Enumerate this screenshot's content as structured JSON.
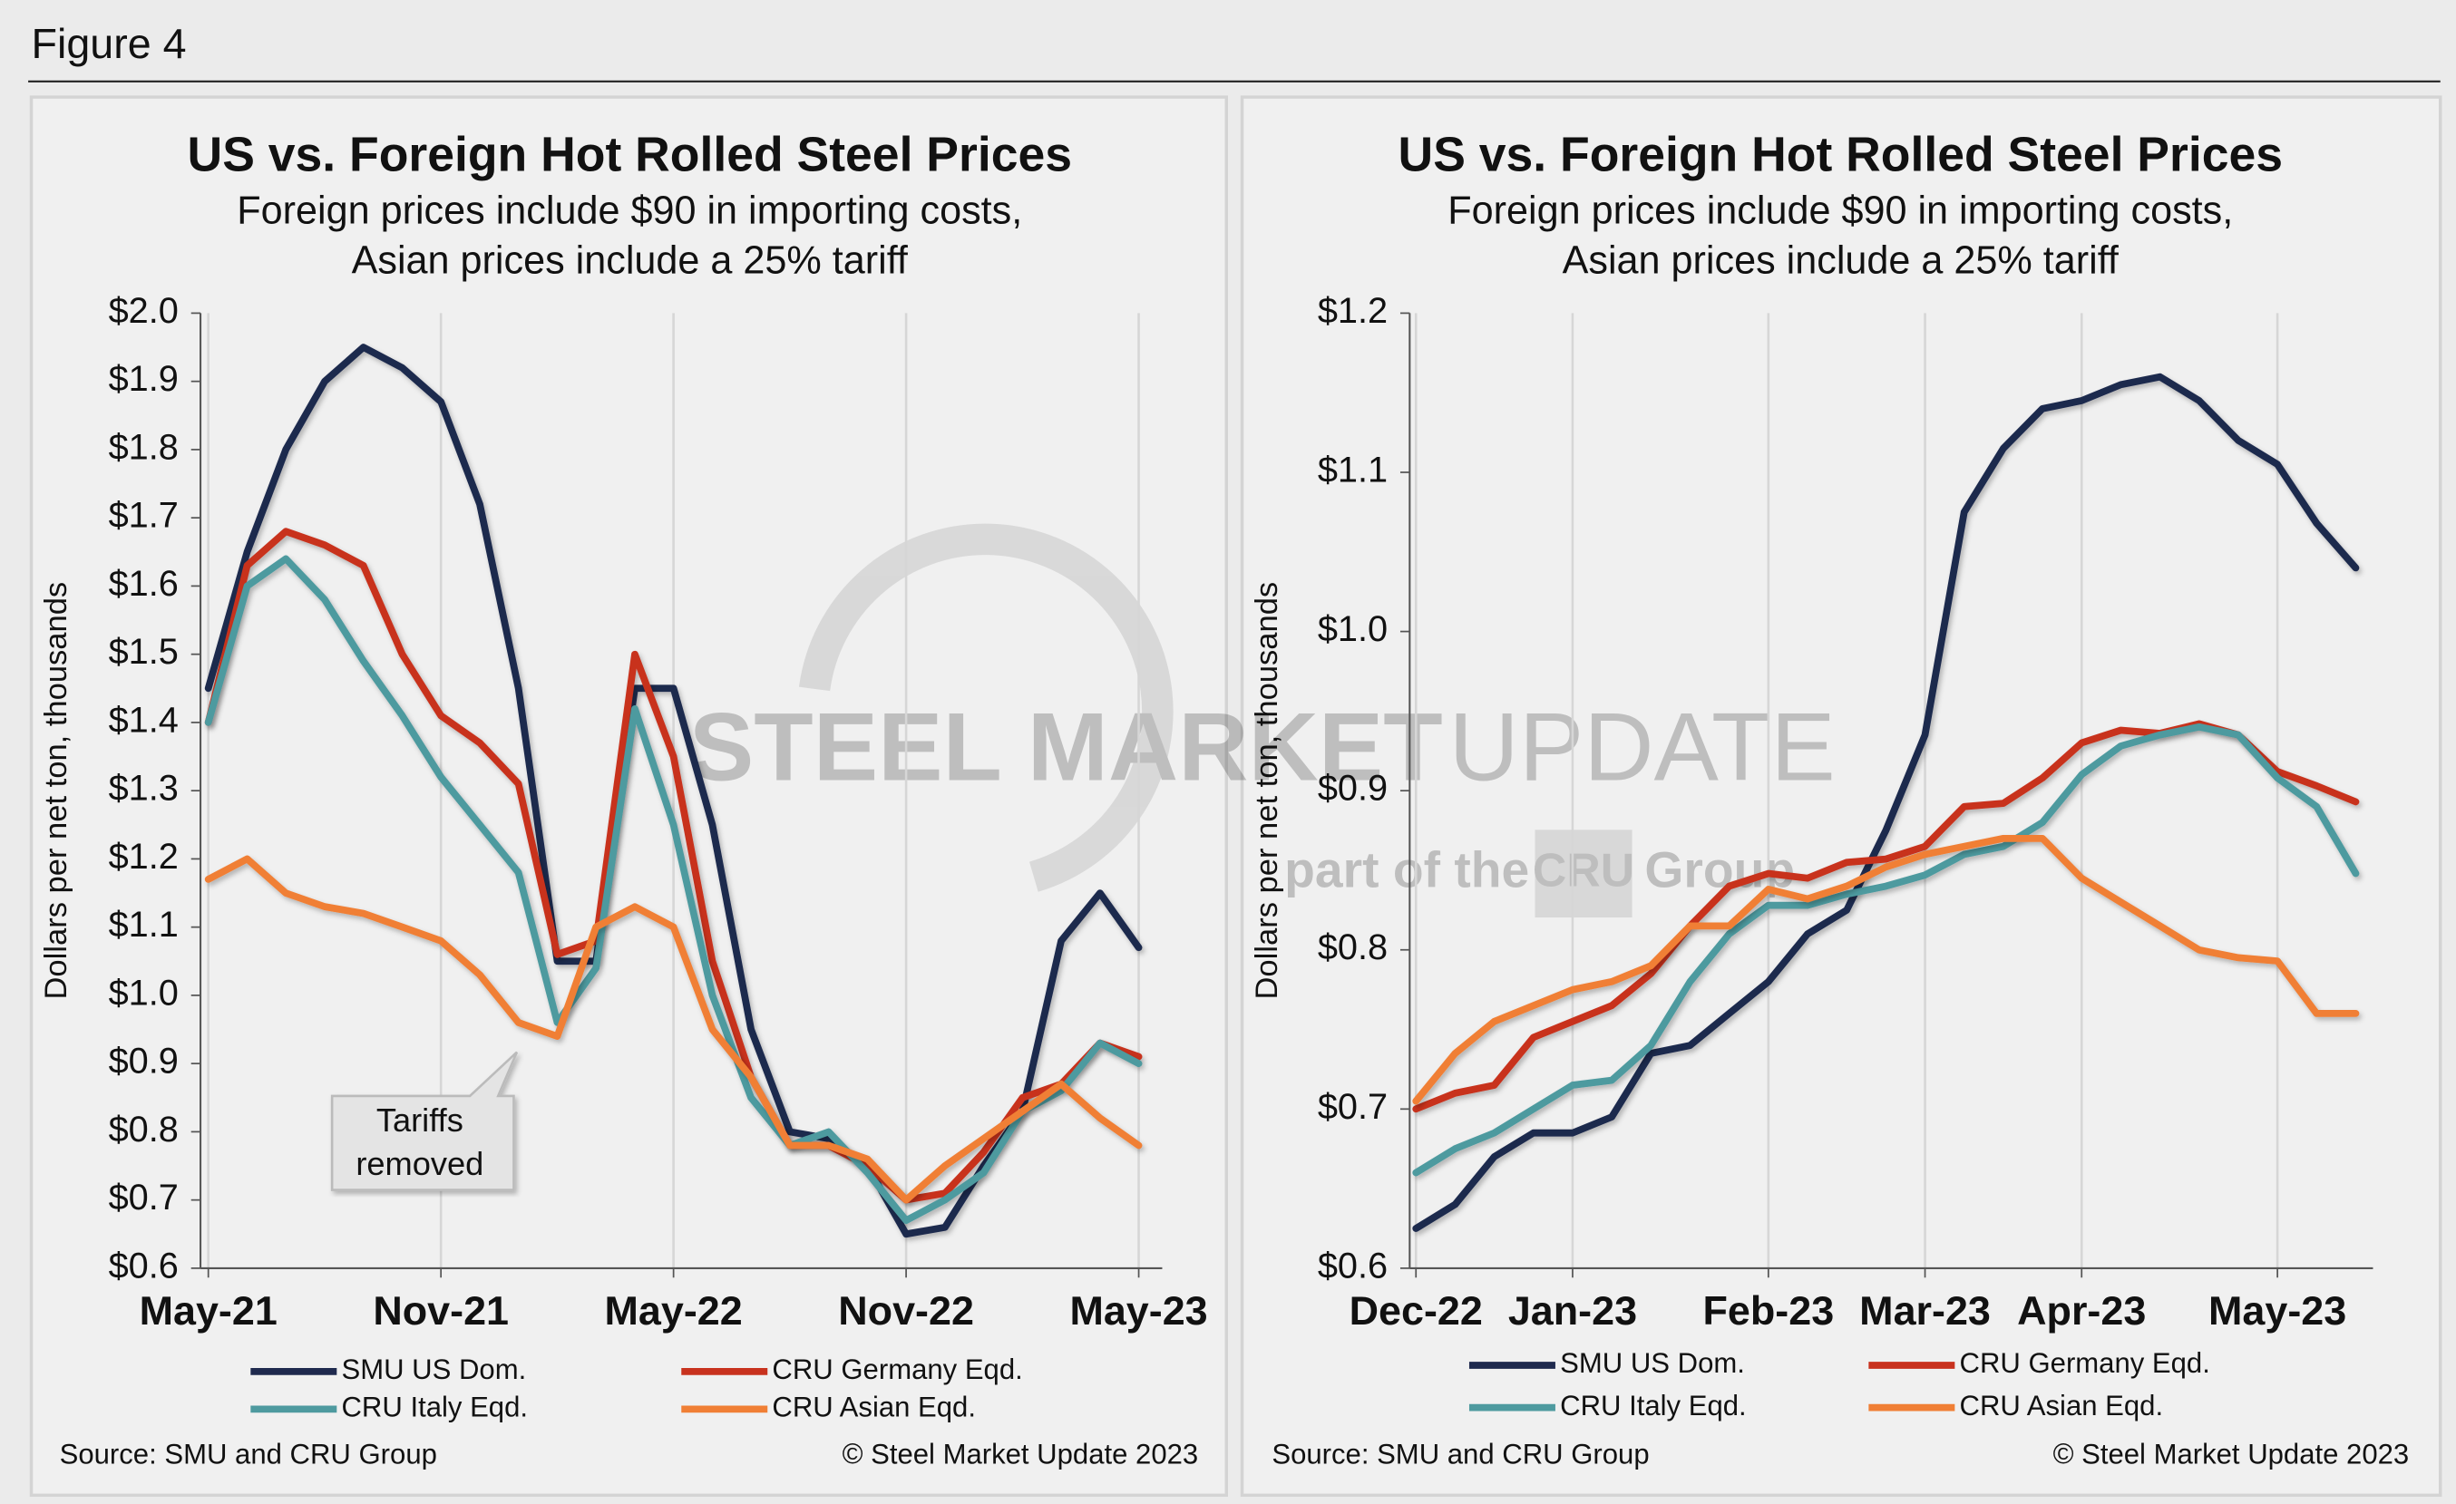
{
  "figure_label": "Figure 4",
  "watermark": {
    "brand": "STEEL MARKET",
    "product": "UPDATE",
    "tagline": "part of the",
    "logo": "CRU",
    "group": "Group"
  },
  "chart_data": [
    {
      "type": "line",
      "title": "US vs. Foreign Hot Rolled Steel Prices",
      "subtitle": [
        "Foreign prices include $90 in importing costs,",
        "Asian prices include a 25% tariff"
      ],
      "y_label": "Dollars per net ton, thousands",
      "categories": [
        "May-21",
        null,
        null,
        null,
        null,
        null,
        "Nov-21",
        null,
        null,
        null,
        null,
        null,
        "May-22",
        null,
        null,
        null,
        null,
        null,
        "Nov-22",
        null,
        null,
        null,
        null,
        null,
        "May-23"
      ],
      "ylim": [
        0.6,
        2.0
      ],
      "yticks": [
        {
          "value": 0.6,
          "label": "$0.6"
        },
        {
          "value": 0.7,
          "label": "$0.7"
        },
        {
          "value": 0.8,
          "label": "$0.8"
        },
        {
          "value": 0.9,
          "label": "$0.9"
        },
        {
          "value": 1.0,
          "label": "$1.0"
        },
        {
          "value": 1.1,
          "label": "$1.1"
        },
        {
          "value": 1.2,
          "label": "$1.2"
        },
        {
          "value": 1.3,
          "label": "$1.3"
        },
        {
          "value": 1.4,
          "label": "$1.4"
        },
        {
          "value": 1.5,
          "label": "$1.5"
        },
        {
          "value": 1.6,
          "label": "$1.6"
        },
        {
          "value": 1.7,
          "label": "$1.7"
        },
        {
          "value": 1.8,
          "label": "$1.8"
        },
        {
          "value": 1.9,
          "label": "$1.9"
        },
        {
          "value": 2.0,
          "label": "$2.0"
        }
      ],
      "grid": true,
      "series": [
        {
          "name": "SMU US Dom.",
          "color": "#1f2a4e",
          "values": [
            1.45,
            1.65,
            1.8,
            1.9,
            1.95,
            1.92,
            1.87,
            1.72,
            1.45,
            1.05,
            1.05,
            1.45,
            1.45,
            1.25,
            0.95,
            0.8,
            0.79,
            0.75,
            0.65,
            0.66,
            0.75,
            0.83,
            1.08,
            1.15,
            1.07
          ]
        },
        {
          "name": "CRU Germany Eqd.",
          "color": "#c8321e",
          "values": [
            1.4,
            1.63,
            1.68,
            1.66,
            1.63,
            1.5,
            1.41,
            1.37,
            1.31,
            1.06,
            1.08,
            1.5,
            1.35,
            1.05,
            0.88,
            0.78,
            0.78,
            0.75,
            0.7,
            0.71,
            0.77,
            0.85,
            0.87,
            0.93,
            0.91
          ]
        },
        {
          "name": "CRU Italy Eqd.",
          "color": "#4e9a9f",
          "values": [
            1.4,
            1.6,
            1.64,
            1.58,
            1.49,
            1.41,
            1.32,
            1.25,
            1.18,
            0.96,
            1.04,
            1.42,
            1.25,
            1.0,
            0.85,
            0.78,
            0.8,
            0.74,
            0.67,
            0.7,
            0.74,
            0.83,
            0.86,
            0.93,
            0.9
          ]
        },
        {
          "name": "CRU Asian Eqd.",
          "color": "#f07f35",
          "values": [
            1.17,
            1.2,
            1.15,
            1.13,
            1.12,
            1.1,
            1.08,
            1.03,
            0.96,
            0.94,
            1.1,
            1.13,
            1.1,
            0.95,
            0.88,
            0.78,
            0.78,
            0.76,
            0.7,
            0.75,
            0.79,
            0.83,
            0.87,
            0.82,
            0.78
          ]
        }
      ],
      "annotation": [
        "Tariffs",
        "removed"
      ],
      "source": "Source: SMU and CRU Group",
      "credit": "© Steel Market Update 2023"
    },
    {
      "type": "line",
      "title": "US vs. Foreign Hot Rolled Steel Prices",
      "subtitle": [
        "Foreign prices include $90 in importing costs,",
        "Asian prices include a 25% tariff"
      ],
      "y_label": "Dollars per net ton, thousands",
      "categories": [
        "Dec-22",
        null,
        null,
        null,
        "Jan-23",
        null,
        null,
        null,
        null,
        "Feb-23",
        null,
        null,
        null,
        "Mar-23",
        null,
        null,
        null,
        "Apr-23",
        null,
        null,
        null,
        null,
        "May-23",
        null,
        null
      ],
      "ylim": [
        0.6,
        1.2
      ],
      "yticks": [
        {
          "value": 0.6,
          "label": "$0.6"
        },
        {
          "value": 0.7,
          "label": "$0.7"
        },
        {
          "value": 0.8,
          "label": "$0.8"
        },
        {
          "value": 0.9,
          "label": "$0.9"
        },
        {
          "value": 1.0,
          "label": "$1.0"
        },
        {
          "value": 1.1,
          "label": "$1.1"
        },
        {
          "value": 1.2,
          "label": "$1.2"
        }
      ],
      "grid": true,
      "series": [
        {
          "name": "SMU US Dom.",
          "color": "#1f2a4e",
          "values": [
            0.625,
            0.64,
            0.67,
            0.685,
            0.685,
            0.695,
            0.735,
            0.74,
            0.76,
            0.78,
            0.81,
            0.825,
            0.875,
            0.935,
            1.075,
            1.115,
            1.14,
            1.145,
            1.155,
            1.16,
            1.145,
            1.12,
            1.105,
            1.068,
            1.04
          ]
        },
        {
          "name": "CRU Germany Eqd.",
          "color": "#c8321e",
          "values": [
            0.7,
            0.71,
            0.715,
            0.745,
            0.755,
            0.765,
            0.785,
            0.815,
            0.84,
            0.848,
            0.845,
            0.855,
            0.857,
            0.865,
            0.89,
            0.892,
            0.908,
            0.93,
            0.938,
            0.936,
            0.942,
            0.935,
            0.912,
            0.903,
            0.893
          ]
        },
        {
          "name": "CRU Italy Eqd.",
          "color": "#4e9a9f",
          "values": [
            0.66,
            0.675,
            0.685,
            0.7,
            0.715,
            0.718,
            0.74,
            0.78,
            0.81,
            0.828,
            0.828,
            0.835,
            0.84,
            0.847,
            0.86,
            0.865,
            0.88,
            0.91,
            0.928,
            0.935,
            0.94,
            0.935,
            0.908,
            0.89,
            0.848
          ]
        },
        {
          "name": "CRU Asian Eqd.",
          "color": "#f07f35",
          "values": [
            0.705,
            0.735,
            0.755,
            0.765,
            0.775,
            0.78,
            0.79,
            0.815,
            0.815,
            0.838,
            0.832,
            0.84,
            0.852,
            0.86,
            0.865,
            0.87,
            0.87,
            0.845,
            0.83,
            0.815,
            0.8,
            0.795,
            0.793,
            0.76,
            0.76
          ]
        }
      ],
      "source": "Source: SMU and CRU Group",
      "credit": "© Steel Market Update 2023"
    }
  ]
}
